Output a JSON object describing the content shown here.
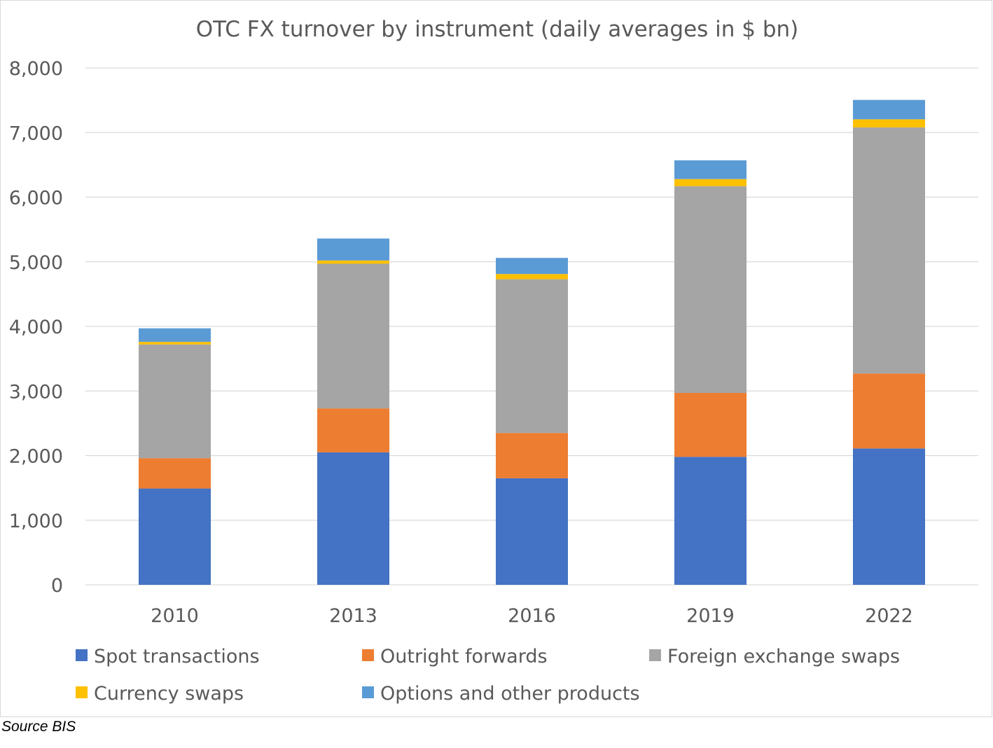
{
  "chart_data": {
    "type": "bar",
    "stacked": true,
    "title": "OTC FX turnover by instrument (daily averages in $ bn)",
    "categories": [
      "2010",
      "2013",
      "2016",
      "2019",
      "2022"
    ],
    "ylim": [
      0,
      8000
    ],
    "yticks": [
      0,
      1000,
      2000,
      3000,
      4000,
      5000,
      6000,
      7000,
      8000
    ],
    "ytick_labels": [
      "0",
      "1,000",
      "2,000",
      "3,000",
      "4,000",
      "5,000",
      "6,000",
      "7,000",
      "8,000"
    ],
    "grid": true,
    "legend_position": "bottom",
    "series": [
      {
        "name": "Spot transactions",
        "color": "#4472c4",
        "values": [
          1490,
          2050,
          1650,
          1980,
          2110
        ]
      },
      {
        "name": "Outright forwards",
        "color": "#ed7d31",
        "values": [
          470,
          680,
          700,
          990,
          1160
        ]
      },
      {
        "name": "Foreign exchange swaps",
        "color": "#a5a5a5",
        "values": [
          1760,
          2240,
          2380,
          3200,
          3810
        ]
      },
      {
        "name": "Currency swaps",
        "color": "#ffc000",
        "values": [
          40,
          50,
          80,
          110,
          125
        ]
      },
      {
        "name": "Options and other products",
        "color": "#5b9bd5",
        "values": [
          210,
          340,
          250,
          290,
          300
        ]
      }
    ]
  },
  "source_note": "Source BIS"
}
